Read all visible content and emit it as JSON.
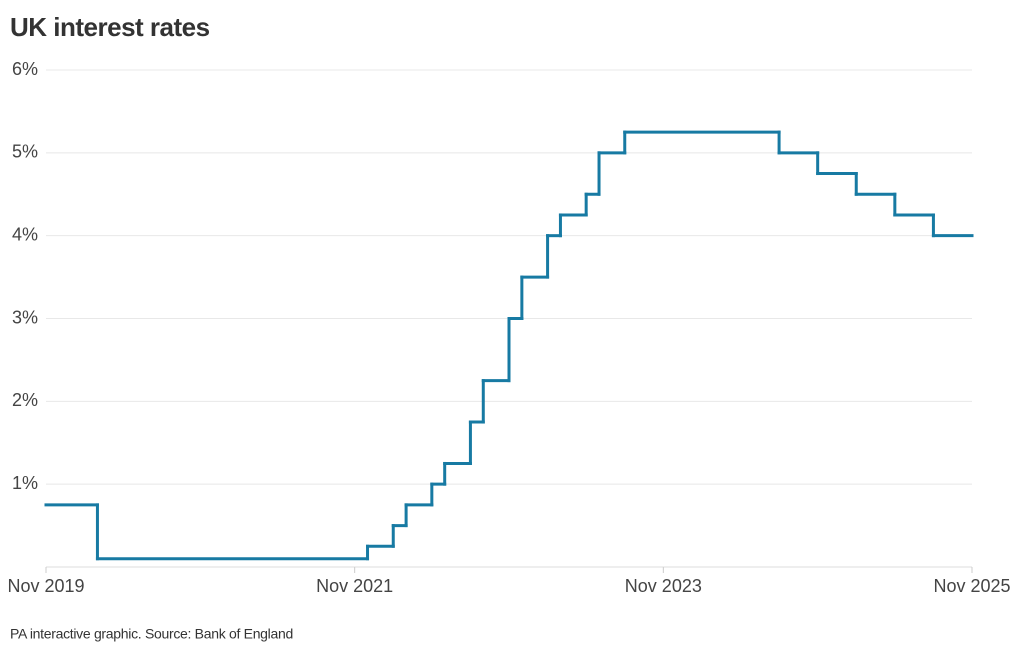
{
  "chart_data": {
    "type": "step",
    "title": "UK interest rates",
    "source": "PA interactive graphic. Source: Bank of England",
    "x": [
      "2019-11",
      "2020-03",
      "2021-12",
      "2022-02",
      "2022-03",
      "2022-05",
      "2022-06",
      "2022-08",
      "2022-09",
      "2022-11",
      "2022-12",
      "2023-02",
      "2023-03",
      "2023-05",
      "2023-06",
      "2023-08",
      "2024-08",
      "2024-11",
      "2025-02",
      "2025-05",
      "2025-08"
    ],
    "values": [
      0.75,
      0.1,
      0.25,
      0.5,
      0.75,
      1,
      1.25,
      1.75,
      2.25,
      3,
      3.5,
      4,
      4.25,
      4.5,
      5,
      5.25,
      5,
      4.75,
      4.5,
      4.25,
      4
    ],
    "color": "#177aa3",
    "xlim": [
      "2019-11",
      "2025-11"
    ],
    "xticks": [
      {
        "value": "2019-11",
        "label": "Nov 2019"
      },
      {
        "value": "2021-11",
        "label": "Nov 2021"
      },
      {
        "value": "2023-11",
        "label": "Nov 2023"
      },
      {
        "value": "2025-11",
        "label": "Nov 2025"
      }
    ],
    "ylim": [
      0,
      6
    ],
    "yticks": [
      {
        "value": 1,
        "label": "1%"
      },
      {
        "value": 2,
        "label": "2%"
      },
      {
        "value": 3,
        "label": "3%"
      },
      {
        "value": 4,
        "label": "4%"
      },
      {
        "value": 5,
        "label": "5%"
      },
      {
        "value": 6,
        "label": "6%"
      }
    ],
    "grid": true
  }
}
